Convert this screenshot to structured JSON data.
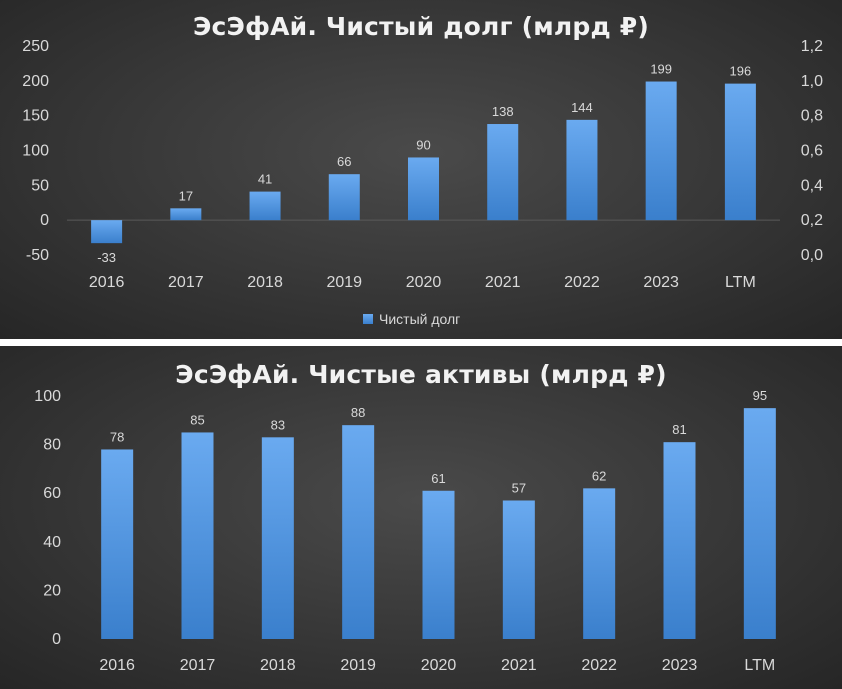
{
  "chart_data": [
    {
      "type": "bar",
      "title": "ЭсЭфАй. Чистый долг (млрд ₽)",
      "categories": [
        "2016",
        "2017",
        "2018",
        "2019",
        "2020",
        "2021",
        "2022",
        "2023",
        "LTM"
      ],
      "series": [
        {
          "name": "Чистый долг",
          "values": [
            -33,
            17,
            41,
            66,
            90,
            138,
            144,
            199,
            196
          ]
        }
      ],
      "ylim": [
        -50,
        250
      ],
      "yticks": [
        -50,
        0,
        50,
        100,
        150,
        200,
        250
      ],
      "y2lim": [
        0,
        1.2
      ],
      "y2ticks": [
        "0,0",
        "0,2",
        "0,4",
        "0,6",
        "0,8",
        "1,0",
        "1,2"
      ],
      "xlabel": "",
      "ylabel": "",
      "legend": "bottom",
      "grid": false
    },
    {
      "type": "bar",
      "title": "ЭсЭфАй. Чистые активы (млрд ₽)",
      "categories": [
        "2016",
        "2017",
        "2018",
        "2019",
        "2020",
        "2021",
        "2022",
        "2023",
        "LTM"
      ],
      "series": [
        {
          "name": "Чистые активы",
          "values": [
            78,
            85,
            83,
            88,
            61,
            57,
            62,
            81,
            95
          ]
        }
      ],
      "ylim": [
        0,
        100
      ],
      "yticks": [
        0,
        20,
        40,
        60,
        80,
        100
      ],
      "xlabel": "",
      "ylabel": "",
      "legend": "none",
      "grid": false
    }
  ],
  "colors": {
    "bar_top": "#6aaaf0",
    "bar_bottom": "#3a7fcc",
    "text": "#d9d9d9",
    "title": "#f2f2f2"
  }
}
